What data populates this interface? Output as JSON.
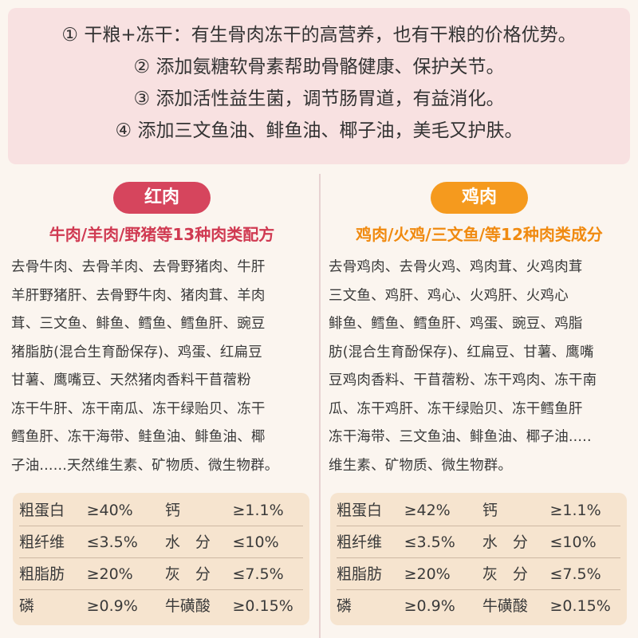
{
  "benefits": [
    "① 干粮+冻干：有生骨肉冻干的高营养，也有干粮的价格优势。",
    "② 添加氨糖软骨素帮助骨骼健康、保护关节。",
    "③ 添加活性益生菌，调节肠胃道，有益消化。",
    "④ 添加三文鱼油、鲱鱼油、椰子油，美毛又护肤。"
  ],
  "left": {
    "tag": "红肉",
    "subtitle": "牛肉/羊肉/野猪等13种肉类配方",
    "ingredients": [
      "去骨牛肉、去骨羊肉、去骨野猪肉、牛肝",
      "羊肝野猪肝、去骨野牛肉、猪肉茸、羊肉",
      "茸、三文鱼、鲱鱼、鳕鱼、鳕鱼肝、豌豆",
      "猪脂肪(混合生育酚保存)、鸡蛋、红扁豆",
      "甘薯、鹰嘴豆、天然猪肉香料干苜蓿粉",
      "冻干牛肝、冻干南瓜、冻干绿贻贝、冻干",
      "鳕鱼肝、冻干海带、鲑鱼油、鲱鱼油、椰",
      "子油......天然维生素、矿物质、微生物群。"
    ],
    "nutrition": [
      [
        "粗蛋白",
        "≥40%",
        "钙",
        "≥1.1%"
      ],
      [
        "粗纤维",
        "≤3.5%",
        "水　分",
        "≤10%"
      ],
      [
        "粗脂肪",
        "≥20%",
        "灰　分",
        "≤7.5%"
      ],
      [
        "磷",
        "≥0.9%",
        "牛磺酸",
        "≥0.15%"
      ]
    ]
  },
  "right": {
    "tag": "鸡肉",
    "subtitle": "鸡肉/火鸡/三文鱼/等12种肉类成分",
    "ingredients": [
      "去骨鸡肉、去骨火鸡、鸡肉茸、火鸡肉茸",
      "三文鱼、鸡肝、鸡心、火鸡肝、火鸡心",
      "鲱鱼、鳕鱼、鳕鱼肝、鸡蛋、豌豆、鸡脂",
      "肪(混合生育酚保存)、红扁豆、甘薯、鹰嘴",
      "豆鸡肉香料、干苜蓿粉、冻干鸡肉、冻干南",
      "瓜、冻干鸡肝、冻干绿贻贝、冻干鳕鱼肝",
      "冻干海带、三文鱼油、鲱鱼油、椰子油.....",
      "维生素、矿物质、微生物群。"
    ],
    "nutrition": [
      [
        "粗蛋白",
        "≥42%",
        "钙",
        "≥1.1%"
      ],
      [
        "粗纤维",
        "≤3.5%",
        "水　分",
        "≤10%"
      ],
      [
        "粗脂肪",
        "≥20%",
        "灰　分",
        "≤7.5%"
      ],
      [
        "磷",
        "≥0.9%",
        "牛磺酸",
        "≥0.15%"
      ]
    ]
  },
  "colors": {
    "red_accent": "#d6455d",
    "orange_accent": "#f59a1e",
    "benefit_bg": "#f8e1e1",
    "table_bg": "#f6e4cf"
  }
}
